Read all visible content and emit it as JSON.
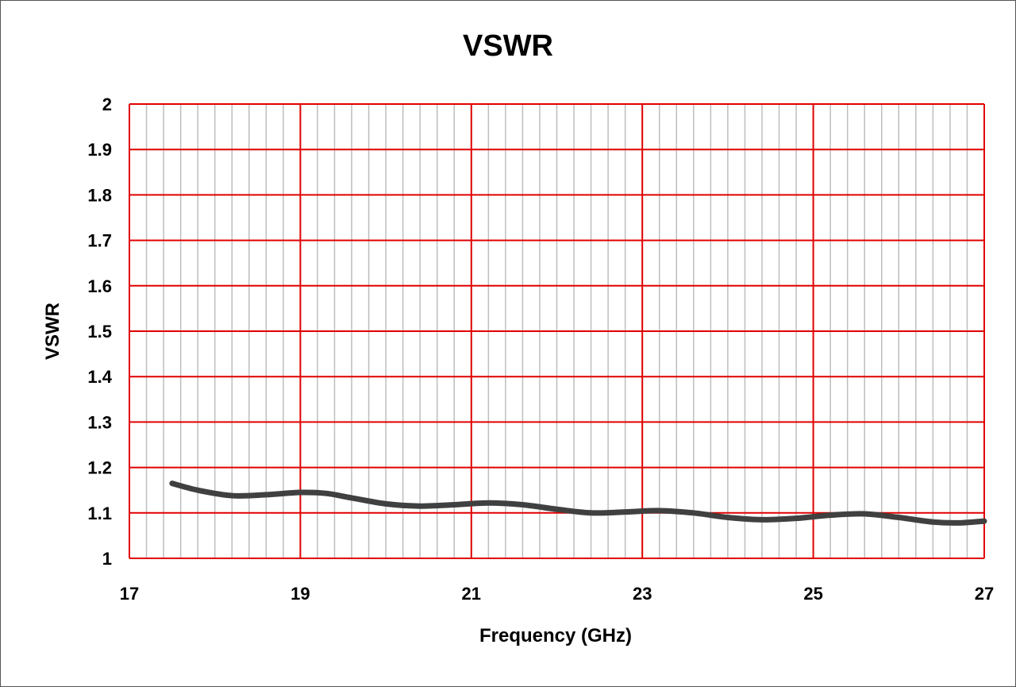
{
  "chart_data": {
    "type": "line",
    "title": "VSWR",
    "xlabel": "Frequency (GHz)",
    "ylabel": "VSWR",
    "xlim": [
      17,
      27
    ],
    "ylim": [
      1,
      2
    ],
    "x_ticks": [
      "17",
      "19",
      "21",
      "23",
      "25",
      "27"
    ],
    "y_ticks": [
      "1",
      "1.1",
      "1.2",
      "1.3",
      "1.4",
      "1.5",
      "1.6",
      "1.7",
      "1.8",
      "1.9",
      "2"
    ],
    "grid": true,
    "grid_color_major": "#e00000",
    "grid_color_minor": "#bdbdbd",
    "line_color": "#404040",
    "series": [
      {
        "x": [
          17.5,
          17.8,
          18.2,
          18.6,
          19.0,
          19.3,
          19.6,
          20.0,
          20.4,
          20.8,
          21.2,
          21.6,
          22.0,
          22.4,
          22.8,
          23.2,
          23.6,
          24.0,
          24.4,
          24.8,
          25.2,
          25.6,
          26.0,
          26.4,
          26.7,
          27.0
        ],
        "y": [
          1.165,
          1.15,
          1.138,
          1.14,
          1.145,
          1.143,
          1.133,
          1.12,
          1.115,
          1.118,
          1.122,
          1.118,
          1.108,
          1.1,
          1.102,
          1.105,
          1.1,
          1.09,
          1.085,
          1.088,
          1.095,
          1.098,
          1.09,
          1.08,
          1.078,
          1.082
        ]
      }
    ]
  }
}
